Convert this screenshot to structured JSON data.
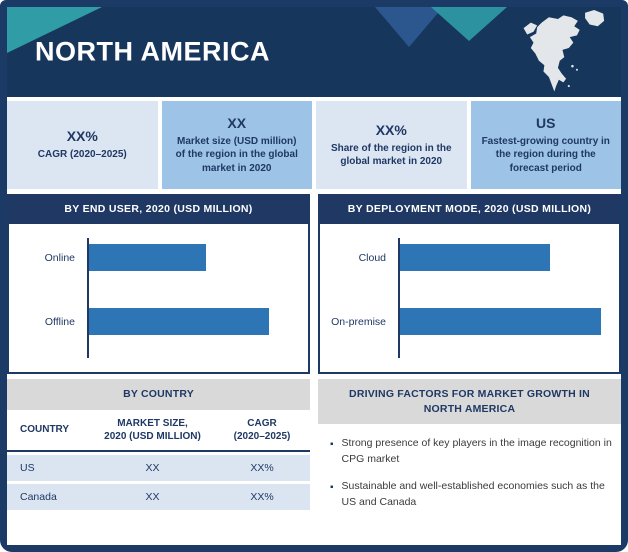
{
  "page": {
    "region_title": "NORTH AMERICA"
  },
  "stats": [
    {
      "value": "XX%",
      "label": "CAGR (2020–2025)"
    },
    {
      "value": "XX",
      "label": "Market size (USD million) of the region in the global market in 2020"
    },
    {
      "value": "XX%",
      "label": "Share of the region in the global market in 2020"
    },
    {
      "value": "US",
      "label": "Fastest-growing country in the region during the forecast period"
    }
  ],
  "chart_data": [
    {
      "type": "bar",
      "orientation": "horizontal",
      "title": "BY END USER, 2020 (USD MILLION)",
      "categories": [
        "Online",
        "Offline"
      ],
      "relative_values": [
        0.57,
        0.88
      ],
      "value_labels_visible": false,
      "axis_tick_labels_visible": false,
      "legend": "none"
    },
    {
      "type": "bar",
      "orientation": "horizontal",
      "title": "BY DEPLOYMENT MODE, 2020 (USD MILLION)",
      "categories": [
        "Cloud",
        "On-premise"
      ],
      "relative_values": [
        0.73,
        0.98
      ],
      "value_labels_visible": false,
      "axis_tick_labels_visible": false,
      "legend": "none"
    }
  ],
  "country_table": {
    "title": "BY COUNTRY",
    "columns": [
      {
        "line1": "COUNTRY",
        "line2": ""
      },
      {
        "line1": "MARKET SIZE,",
        "line2": "2020 (USD MILLION)"
      },
      {
        "line1": "CAGR",
        "line2": "(2020–2025)"
      }
    ],
    "rows": [
      {
        "country": "US",
        "market_size": "XX",
        "cagr": "XX%"
      },
      {
        "country": "Canada",
        "market_size": "XX",
        "cagr": "XX%"
      }
    ]
  },
  "driving_factors": {
    "title": "DRIVING FACTORS FOR MARKET GROWTH IN NORTH AMERICA",
    "items": [
      "Strong presence of key players in the image recognition in CPG market",
      "Sustainable and well-established economies such as the US and Canada"
    ]
  },
  "colors": {
    "frame_navy": "#1b3a66",
    "header_navy": "#16365c",
    "section_navy": "#1f3864",
    "teal_accent": "#2f9ca6",
    "facet_blue": "#2f5d96",
    "stat_light": "#dce6f2",
    "stat_medium": "#9dc3e6",
    "bar_blue": "#2e75b6",
    "gray_header": "#d9d9d9",
    "row_light": "#dbe5f1",
    "text_navy": "#1f3864",
    "map_fill": "#e3e7ea"
  }
}
